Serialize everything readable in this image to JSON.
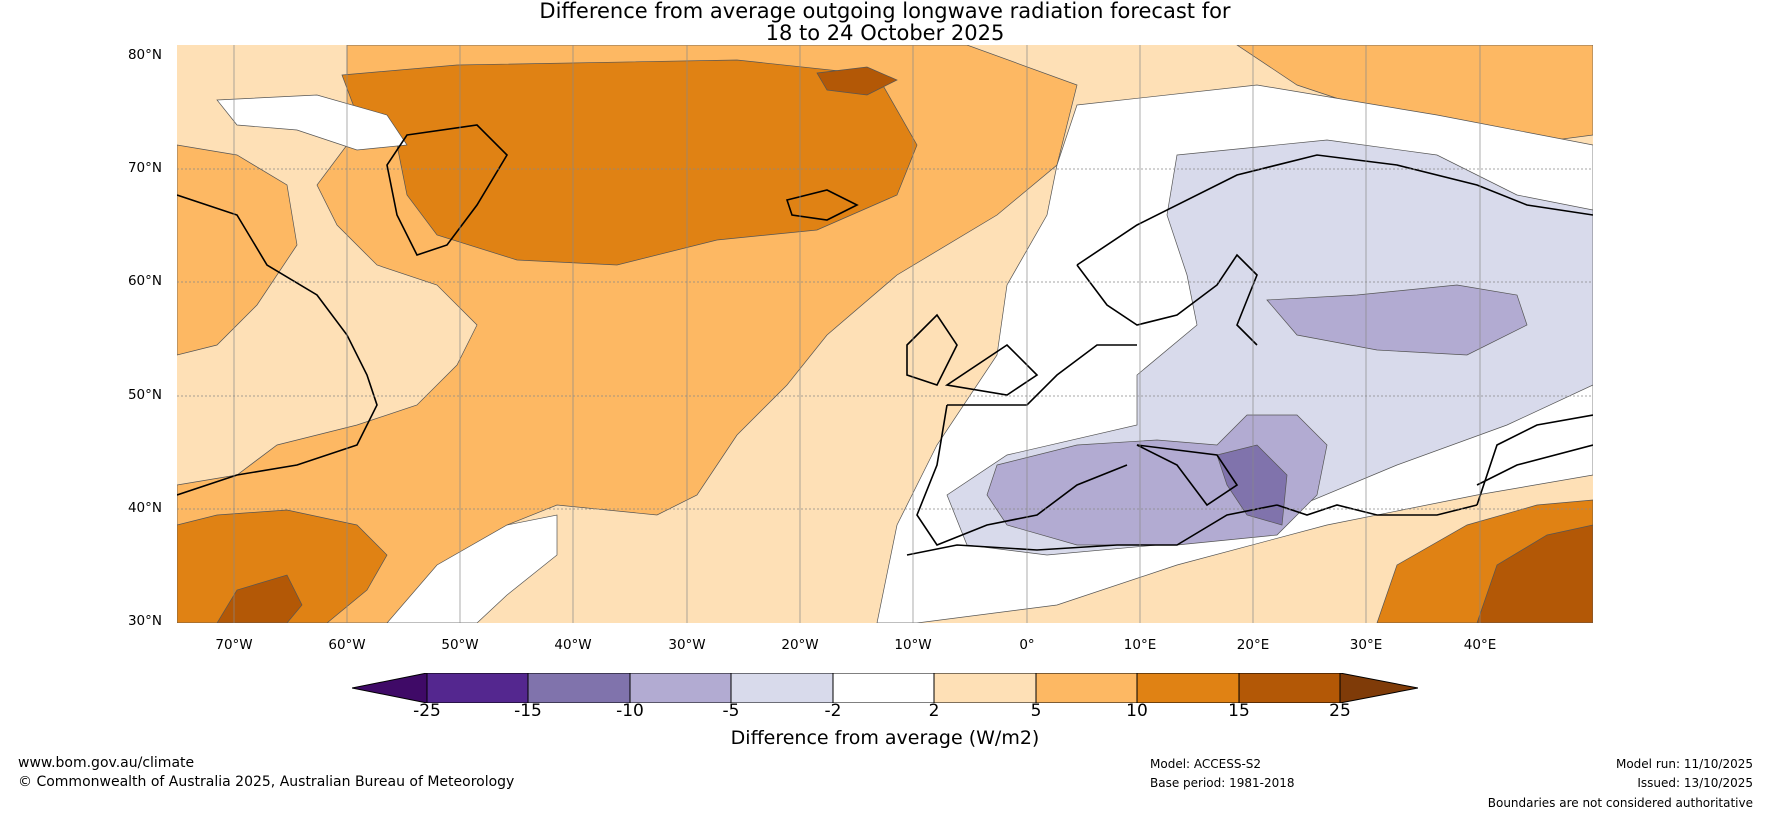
{
  "title": {
    "line1": "Difference from average outgoing longwave radiation forecast for",
    "line2": "18 to 24 October 2025"
  },
  "axes": {
    "lat_labels": [
      "80°N",
      "70°N",
      "60°N",
      "50°N",
      "40°N",
      "30°N"
    ],
    "lon_labels": [
      "70°W",
      "60°W",
      "50°W",
      "40°W",
      "30°W",
      "20°W",
      "10°W",
      "0°",
      "10°E",
      "20°E",
      "30°E",
      "40°E"
    ],
    "lat_range": [
      30,
      81
    ],
    "lon_range": [
      -75,
      50
    ]
  },
  "colorbar": {
    "label": "Difference from average (W/m2)",
    "ticks": [
      "-25",
      "-15",
      "-10",
      "-5",
      "-2",
      "2",
      "5",
      "10",
      "15",
      "25"
    ],
    "colors": [
      "#3f0a67",
      "#54278f",
      "#8073ac",
      "#b2abd2",
      "#d8daeb",
      "#ffffff",
      "#fee0b6",
      "#fdb863",
      "#e08214",
      "#b35806",
      "#7f3b08"
    ]
  },
  "footer": {
    "website": "www.bom.gov.au/climate",
    "copyright": "© Commonwealth of Australia 2025, Australian Bureau of Meteorology",
    "model": "Model: ACCESS-S2",
    "base_period": "Base period: 1981-2018",
    "model_run": "Model run: 11/10/2025",
    "issued": "Issued: 13/10/2025",
    "disclaimer": "Boundaries are not considered authoritative"
  }
}
